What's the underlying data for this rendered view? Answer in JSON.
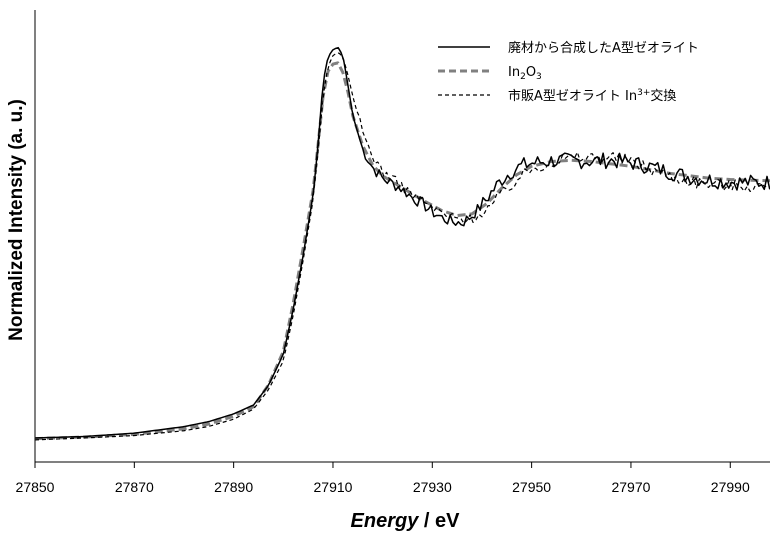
{
  "chart_data": {
    "type": "line",
    "title": "",
    "xlabel_em": "Energy",
    "xlabel_rest": " / eV",
    "ylabel": "Normalized Intensity (a. u.)",
    "xlim": [
      27850,
      27998
    ],
    "ylim": [
      -0.1,
      1.78
    ],
    "xticks": [
      27850,
      27870,
      27890,
      27910,
      27930,
      27950,
      27970,
      27990
    ],
    "grid": false,
    "legend_position": "top-right",
    "series": [
      {
        "name": "廃材から合成したA型ゼオライト",
        "style": "solid",
        "color": "#000000",
        "points": [
          [
            27850,
            0.0
          ],
          [
            27860,
            0.006
          ],
          [
            27870,
            0.02
          ],
          [
            27880,
            0.047
          ],
          [
            27885,
            0.068
          ],
          [
            27890,
            0.1
          ],
          [
            27894,
            0.137
          ],
          [
            27897,
            0.218
          ],
          [
            27900,
            0.348
          ],
          [
            27902,
            0.535
          ],
          [
            27904,
            0.76
          ],
          [
            27906,
            1.01
          ],
          [
            27907,
            1.22
          ],
          [
            27908,
            1.48
          ],
          [
            27909,
            1.585
          ],
          [
            27910,
            1.615
          ],
          [
            27911,
            1.625
          ],
          [
            27912,
            1.59
          ],
          [
            27913,
            1.47
          ],
          [
            27914,
            1.34
          ],
          [
            27916,
            1.2
          ],
          [
            27918,
            1.125
          ],
          [
            27920,
            1.08
          ],
          [
            27922,
            1.058
          ],
          [
            27924,
            1.035
          ],
          [
            27926,
            1.0
          ],
          [
            27928,
            0.975
          ],
          [
            27930,
            0.94
          ],
          [
            27932,
            0.915
          ],
          [
            27934,
            0.9
          ],
          [
            27936,
            0.895
          ],
          [
            27938,
            0.925
          ],
          [
            27940,
            0.968
          ],
          [
            27942,
            1.025
          ],
          [
            27944,
            1.075
          ],
          [
            27946,
            1.11
          ],
          [
            27948,
            1.132
          ],
          [
            27950,
            1.143
          ],
          [
            27954,
            1.153
          ],
          [
            27958,
            1.153
          ],
          [
            27962,
            1.152
          ],
          [
            27966,
            1.155
          ],
          [
            27970,
            1.145
          ],
          [
            27974,
            1.128
          ],
          [
            27978,
            1.105
          ],
          [
            27982,
            1.085
          ],
          [
            27986,
            1.073
          ],
          [
            27990,
            1.065
          ],
          [
            27994,
            1.063
          ],
          [
            27998,
            1.062
          ]
        ]
      },
      {
        "name": "In2O3",
        "name_base": "In",
        "name_sub1": "2",
        "name_mid": "O",
        "name_sub2": "3",
        "style": "dash-thick",
        "color": "#808080",
        "points": [
          [
            27850,
            -0.003
          ],
          [
            27860,
            0.004
          ],
          [
            27870,
            0.015
          ],
          [
            27880,
            0.038
          ],
          [
            27885,
            0.058
          ],
          [
            27890,
            0.09
          ],
          [
            27894,
            0.13
          ],
          [
            27897,
            0.22
          ],
          [
            27900,
            0.36
          ],
          [
            27902,
            0.56
          ],
          [
            27904,
            0.79
          ],
          [
            27906,
            1.03
          ],
          [
            27907,
            1.22
          ],
          [
            27908,
            1.42
          ],
          [
            27909,
            1.525
          ],
          [
            27910,
            1.555
          ],
          [
            27911,
            1.56
          ],
          [
            27912,
            1.52
          ],
          [
            27913,
            1.44
          ],
          [
            27914,
            1.34
          ],
          [
            27916,
            1.215
          ],
          [
            27918,
            1.135
          ],
          [
            27920,
            1.09
          ],
          [
            27924,
            1.04
          ],
          [
            27928,
            0.99
          ],
          [
            27932,
            0.945
          ],
          [
            27935,
            0.925
          ],
          [
            27938,
            0.932
          ],
          [
            27941,
            0.975
          ],
          [
            27944,
            1.04
          ],
          [
            27947,
            1.095
          ],
          [
            27950,
            1.13
          ],
          [
            27954,
            1.15
          ],
          [
            27958,
            1.155
          ],
          [
            27962,
            1.15
          ],
          [
            27966,
            1.14
          ],
          [
            27970,
            1.13
          ],
          [
            27974,
            1.115
          ],
          [
            27978,
            1.1
          ],
          [
            27982,
            1.09
          ],
          [
            27986,
            1.08
          ],
          [
            27990,
            1.075
          ],
          [
            27994,
            1.072
          ],
          [
            27998,
            1.07
          ]
        ]
      },
      {
        "name": "市販A型ゼオライト In3+交換",
        "name_base": "市販A型ゼオライト In",
        "name_sup": "3+",
        "name_rest": "交換",
        "style": "dash-thin",
        "color": "#000000",
        "points": [
          [
            27850,
            -0.008
          ],
          [
            27860,
            0.0
          ],
          [
            27870,
            0.01
          ],
          [
            27880,
            0.03
          ],
          [
            27885,
            0.048
          ],
          [
            27890,
            0.078
          ],
          [
            27894,
            0.12
          ],
          [
            27897,
            0.2
          ],
          [
            27900,
            0.32
          ],
          [
            27902,
            0.51
          ],
          [
            27904,
            0.74
          ],
          [
            27906,
            0.99
          ],
          [
            27907,
            1.19
          ],
          [
            27908,
            1.42
          ],
          [
            27909,
            1.545
          ],
          [
            27910,
            1.59
          ],
          [
            27911,
            1.605
          ],
          [
            27912,
            1.585
          ],
          [
            27913,
            1.51
          ],
          [
            27914,
            1.42
          ],
          [
            27916,
            1.27
          ],
          [
            27918,
            1.17
          ],
          [
            27920,
            1.11
          ],
          [
            27924,
            1.045
          ],
          [
            27928,
            0.985
          ],
          [
            27932,
            0.935
          ],
          [
            27935,
            0.91
          ],
          [
            27938,
            0.912
          ],
          [
            27941,
            0.95
          ],
          [
            27944,
            1.015
          ],
          [
            27947,
            1.075
          ],
          [
            27950,
            1.12
          ],
          [
            27954,
            1.15
          ],
          [
            27958,
            1.165
          ],
          [
            27962,
            1.17
          ],
          [
            27966,
            1.17
          ],
          [
            27970,
            1.15
          ],
          [
            27974,
            1.12
          ],
          [
            27978,
            1.09
          ],
          [
            27982,
            1.07
          ],
          [
            27986,
            1.058
          ],
          [
            27990,
            1.052
          ],
          [
            27994,
            1.05
          ],
          [
            27998,
            1.05
          ]
        ]
      }
    ]
  }
}
